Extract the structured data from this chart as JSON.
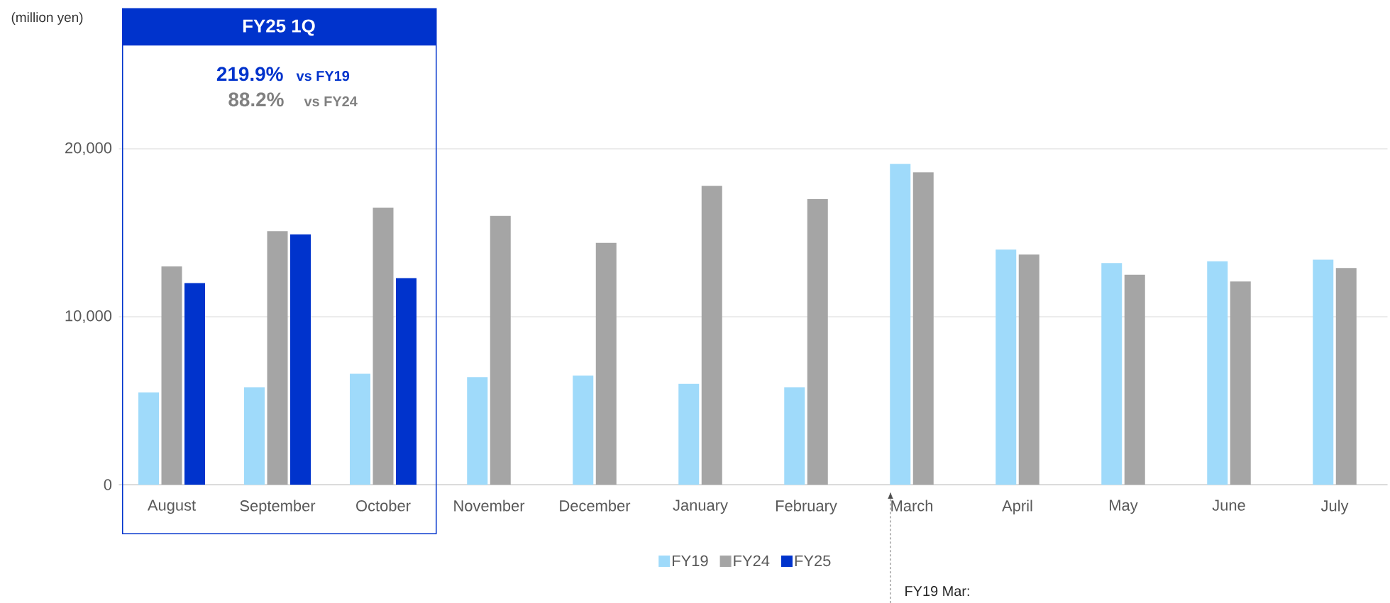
{
  "chart_data": {
    "type": "bar",
    "categories": [
      "August",
      "September",
      "October",
      "November",
      "December",
      "January",
      "February",
      "March",
      "April",
      "May",
      "June",
      "July"
    ],
    "series": [
      {
        "name": "FY19",
        "color": "#9fdafa",
        "values": [
          5500,
          5800,
          6600,
          6400,
          6500,
          6000,
          5800,
          19100,
          14000,
          13200,
          13300,
          13400
        ]
      },
      {
        "name": "FY24",
        "color": "#a5a5a5",
        "values": [
          13000,
          15100,
          16500,
          16000,
          14400,
          17800,
          17000,
          18600,
          13700,
          12500,
          12100,
          12900
        ]
      },
      {
        "name": "FY25",
        "color": "#0033cc",
        "values": [
          12000,
          14900,
          12300,
          null,
          null,
          null,
          null,
          null,
          null,
          null,
          null,
          null
        ]
      }
    ],
    "ylim": [
      0,
      20000
    ],
    "yticks": [
      0,
      {
        "value": 10000,
        "label": "10,000"
      },
      {
        "value": 20000,
        "label": "20,000"
      }
    ],
    "grid": "y",
    "legend": "bottom",
    "annotations": [
      "FY25 1Q",
      "219.9%",
      "vs FY19",
      "88.2%",
      "vs FY24",
      "FY19 Mar:",
      "(million yen)"
    ]
  }
}
